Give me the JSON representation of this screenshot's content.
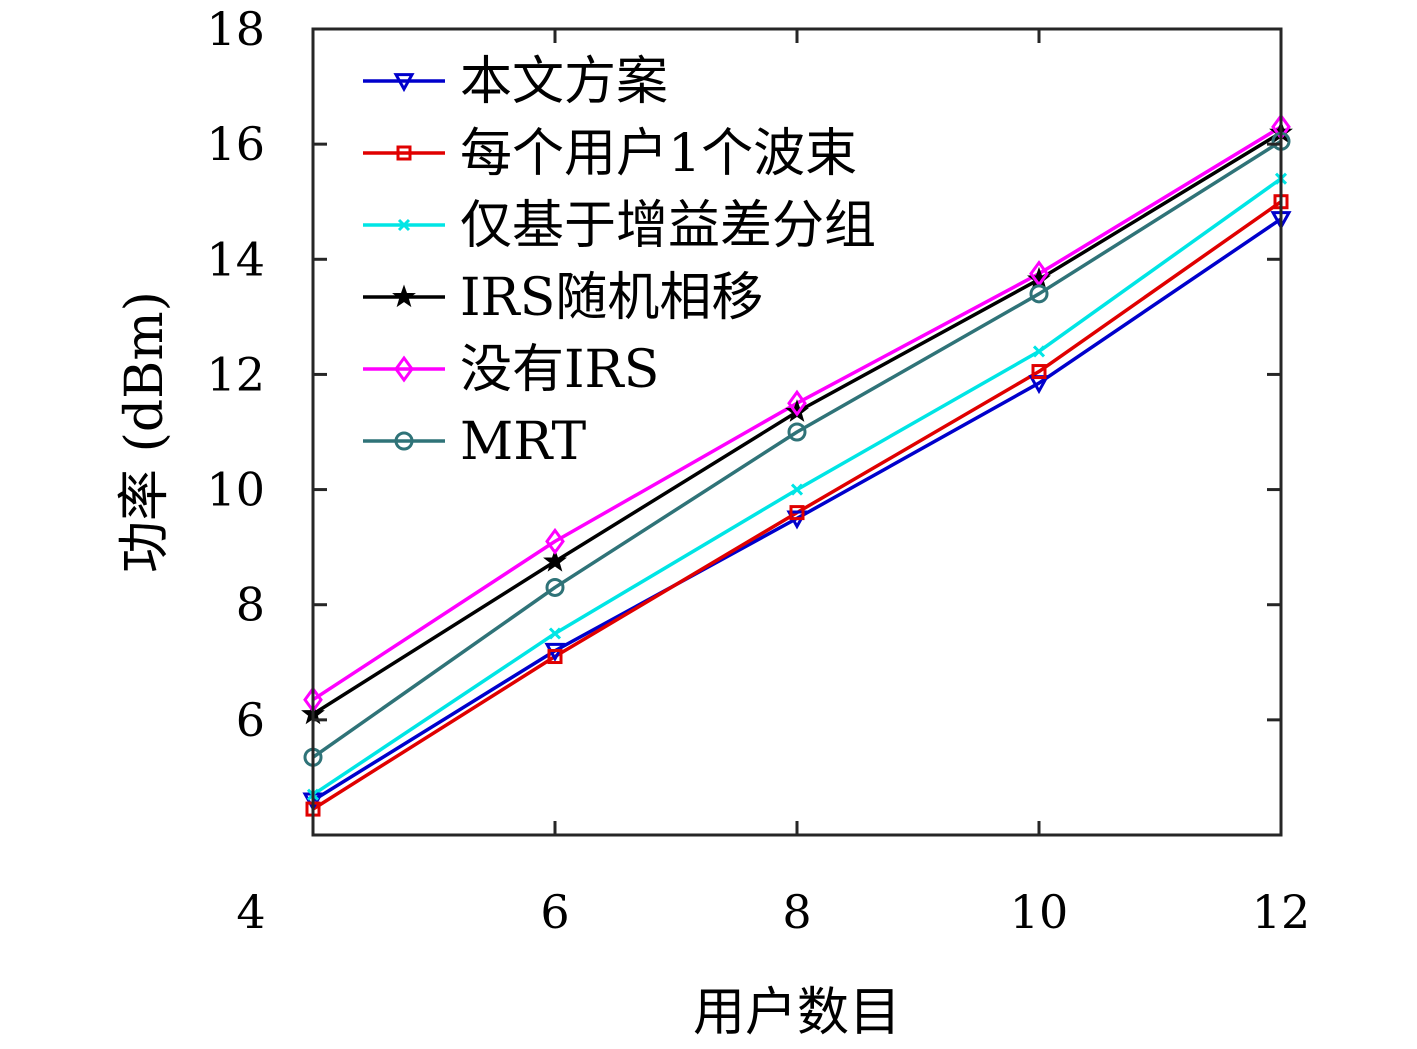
{
  "chart_data": {
    "type": "line",
    "xlabel": "用户数目",
    "ylabel": "功率 (dBm)",
    "xlim": [
      4,
      12
    ],
    "ylim": [
      4,
      18
    ],
    "xticks": [
      4,
      6,
      8,
      10,
      12
    ],
    "yticks": [
      6,
      8,
      10,
      12,
      14,
      16,
      18
    ],
    "x": [
      4,
      6,
      8,
      10,
      12
    ],
    "grid": false,
    "legend_position": "top-left",
    "series": [
      {
        "name": "本文方案",
        "values": [
          4.6,
          7.2,
          9.5,
          11.85,
          14.7
        ],
        "color": "#0000cc",
        "marker": "triangle-down"
      },
      {
        "name": "每个用户1个波束",
        "values": [
          4.45,
          7.1,
          9.6,
          12.05,
          15.0
        ],
        "color": "#e00000",
        "marker": "square"
      },
      {
        "name": "仅基于增益差分组",
        "values": [
          4.7,
          7.5,
          10.0,
          12.4,
          15.4
        ],
        "color": "#00e5e5",
        "marker": "x"
      },
      {
        "name": "IRS随机相移",
        "values": [
          6.1,
          8.75,
          11.35,
          13.65,
          16.2
        ],
        "color": "#000000",
        "marker": "star"
      },
      {
        "name": "没有IRS",
        "values": [
          6.35,
          9.1,
          11.5,
          13.75,
          16.3
        ],
        "color": "#ff00ff",
        "marker": "diamond"
      },
      {
        "name": "MRT",
        "values": [
          5.35,
          8.3,
          11.0,
          13.4,
          16.05
        ],
        "color": "#2f7378",
        "marker": "circle"
      }
    ]
  }
}
